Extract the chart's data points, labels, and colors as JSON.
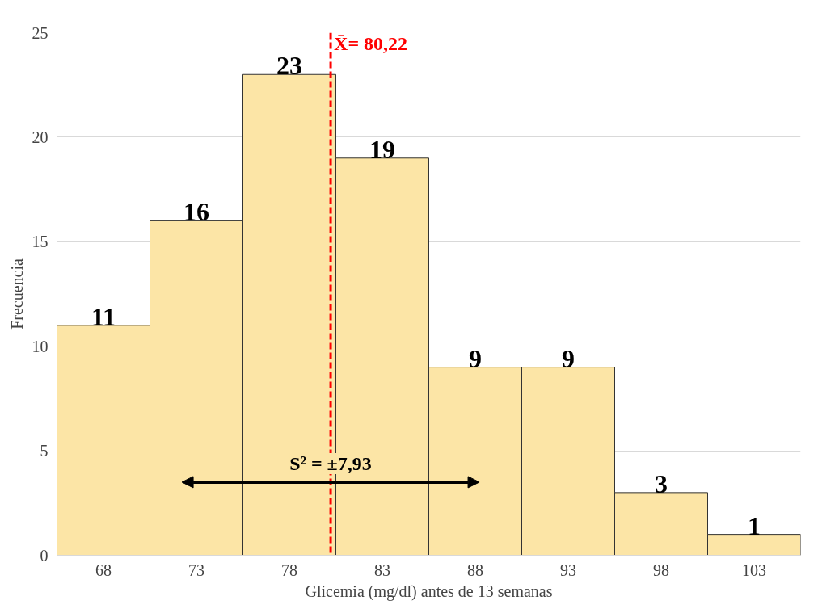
{
  "chart_data": {
    "type": "bar",
    "xlabel": "Glicemia (mg/dl) antes de 13 semanas",
    "ylabel": "Frecuencia",
    "x": [
      68,
      73,
      78,
      83,
      88,
      93,
      98,
      103
    ],
    "values": [
      11,
      16,
      23,
      19,
      9,
      9,
      3,
      1
    ],
    "color": "#fce5a6",
    "xlim": [
      65.5,
      105.5
    ],
    "xticks": [
      68,
      73,
      78,
      83,
      88,
      93,
      98,
      103
    ],
    "ylim": [
      0,
      25
    ],
    "yticks": [
      0,
      5,
      10,
      15,
      20,
      25
    ],
    "grid": "y",
    "data_labels": true,
    "ref_lines": [
      {
        "axis": "x",
        "value": 80.22,
        "label": "X̄= 80,22",
        "color": "#ff0000",
        "line_style": "dashed"
      }
    ],
    "annotations": [
      {
        "text": "S² = ±7,93",
        "x": 80.22,
        "y": 3.5
      }
    ]
  }
}
